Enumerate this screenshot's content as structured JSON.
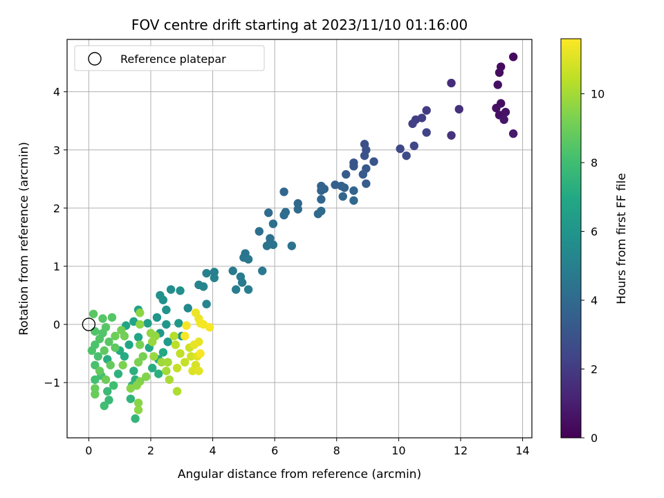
{
  "chart_data": {
    "type": "scatter",
    "title": "FOV centre drift starting at 2023/11/10 01:16:00",
    "xlabel": "Angular distance from reference (arcmin)",
    "ylabel": "Rotation from reference (arcmin)",
    "xlim": [
      -0.7,
      14.3
    ],
    "ylim": [
      -1.95,
      4.9
    ],
    "xticks": [
      0,
      2,
      4,
      6,
      8,
      10,
      12,
      14
    ],
    "yticks": [
      -1,
      0,
      1,
      2,
      3,
      4
    ],
    "xtick_labels": [
      "0",
      "2",
      "4",
      "6",
      "8",
      "10",
      "12",
      "14"
    ],
    "ytick_labels": [
      "−1",
      "0",
      "1",
      "2",
      "3",
      "4"
    ],
    "grid": true,
    "legend": {
      "placement": "top-left",
      "entries": [
        {
          "label": "Reference platepar",
          "marker": "open-circle"
        }
      ]
    },
    "reference_point": {
      "x": 0,
      "y": 0
    },
    "colorbar": {
      "label": "Hours from first FF file",
      "range": [
        0,
        11.6
      ],
      "ticks": [
        0,
        2,
        4,
        6,
        8,
        10
      ],
      "tick_labels": [
        "0",
        "2",
        "4",
        "6",
        "8",
        "10"
      ],
      "colormap": "viridis"
    },
    "points": [
      {
        "x": 13.7,
        "y": 4.6,
        "c": 0.3
      },
      {
        "x": 13.3,
        "y": 4.43,
        "c": 0.3
      },
      {
        "x": 13.25,
        "y": 4.33,
        "c": 0.4
      },
      {
        "x": 13.2,
        "y": 4.12,
        "c": 0.5
      },
      {
        "x": 13.3,
        "y": 3.8,
        "c": 0.4
      },
      {
        "x": 13.15,
        "y": 3.72,
        "c": 0.5
      },
      {
        "x": 13.45,
        "y": 3.65,
        "c": 0.6
      },
      {
        "x": 13.25,
        "y": 3.6,
        "c": 0.5
      },
      {
        "x": 13.4,
        "y": 3.52,
        "c": 0.7
      },
      {
        "x": 13.7,
        "y": 3.28,
        "c": 0.8
      },
      {
        "x": 11.7,
        "y": 4.15,
        "c": 1.5
      },
      {
        "x": 11.95,
        "y": 3.7,
        "c": 1.6
      },
      {
        "x": 11.7,
        "y": 3.25,
        "c": 1.7
      },
      {
        "x": 10.9,
        "y": 3.68,
        "c": 2.0
      },
      {
        "x": 10.75,
        "y": 3.55,
        "c": 2.1
      },
      {
        "x": 10.55,
        "y": 3.52,
        "c": 2.1
      },
      {
        "x": 10.45,
        "y": 3.45,
        "c": 2.2
      },
      {
        "x": 10.9,
        "y": 3.3,
        "c": 2.3
      },
      {
        "x": 10.5,
        "y": 3.07,
        "c": 2.4
      },
      {
        "x": 10.05,
        "y": 3.02,
        "c": 2.5
      },
      {
        "x": 10.25,
        "y": 2.9,
        "c": 2.6
      },
      {
        "x": 8.9,
        "y": 3.1,
        "c": 2.8
      },
      {
        "x": 8.95,
        "y": 3.0,
        "c": 2.9
      },
      {
        "x": 8.9,
        "y": 2.9,
        "c": 3.0
      },
      {
        "x": 9.2,
        "y": 2.8,
        "c": 3.0
      },
      {
        "x": 8.55,
        "y": 2.78,
        "c": 3.1
      },
      {
        "x": 8.55,
        "y": 2.72,
        "c": 3.1
      },
      {
        "x": 8.95,
        "y": 2.68,
        "c": 3.2
      },
      {
        "x": 8.3,
        "y": 2.58,
        "c": 3.3
      },
      {
        "x": 8.85,
        "y": 2.58,
        "c": 3.3
      },
      {
        "x": 8.95,
        "y": 2.42,
        "c": 3.4
      },
      {
        "x": 7.95,
        "y": 2.4,
        "c": 3.5
      },
      {
        "x": 8.15,
        "y": 2.38,
        "c": 3.5
      },
      {
        "x": 7.5,
        "y": 2.38,
        "c": 3.6
      },
      {
        "x": 8.25,
        "y": 2.35,
        "c": 3.6
      },
      {
        "x": 7.6,
        "y": 2.33,
        "c": 3.6
      },
      {
        "x": 7.5,
        "y": 2.3,
        "c": 3.7
      },
      {
        "x": 8.55,
        "y": 2.3,
        "c": 3.7
      },
      {
        "x": 8.2,
        "y": 2.2,
        "c": 3.8
      },
      {
        "x": 7.5,
        "y": 2.15,
        "c": 3.8
      },
      {
        "x": 8.55,
        "y": 2.13,
        "c": 3.9
      },
      {
        "x": 6.3,
        "y": 2.28,
        "c": 3.8
      },
      {
        "x": 6.75,
        "y": 2.08,
        "c": 3.9
      },
      {
        "x": 6.75,
        "y": 1.98,
        "c": 4.0
      },
      {
        "x": 7.5,
        "y": 1.95,
        "c": 4.0
      },
      {
        "x": 7.4,
        "y": 1.9,
        "c": 4.0
      },
      {
        "x": 6.35,
        "y": 1.93,
        "c": 4.1
      },
      {
        "x": 5.8,
        "y": 1.92,
        "c": 4.1
      },
      {
        "x": 6.3,
        "y": 1.88,
        "c": 4.1
      },
      {
        "x": 5.95,
        "y": 1.73,
        "c": 4.2
      },
      {
        "x": 5.5,
        "y": 1.6,
        "c": 4.2
      },
      {
        "x": 5.85,
        "y": 1.48,
        "c": 4.3
      },
      {
        "x": 5.85,
        "y": 1.4,
        "c": 4.3
      },
      {
        "x": 5.75,
        "y": 1.35,
        "c": 4.4
      },
      {
        "x": 5.95,
        "y": 1.37,
        "c": 4.4
      },
      {
        "x": 6.55,
        "y": 1.35,
        "c": 4.4
      },
      {
        "x": 5.05,
        "y": 1.22,
        "c": 4.5
      },
      {
        "x": 5.0,
        "y": 1.15,
        "c": 4.5
      },
      {
        "x": 5.15,
        "y": 1.12,
        "c": 4.6
      },
      {
        "x": 5.6,
        "y": 0.92,
        "c": 4.7
      },
      {
        "x": 4.65,
        "y": 0.92,
        "c": 4.7
      },
      {
        "x": 4.9,
        "y": 0.82,
        "c": 4.8
      },
      {
        "x": 4.95,
        "y": 0.72,
        "c": 4.8
      },
      {
        "x": 4.75,
        "y": 0.6,
        "c": 4.9
      },
      {
        "x": 5.15,
        "y": 0.6,
        "c": 4.9
      },
      {
        "x": 4.05,
        "y": 0.9,
        "c": 5.0
      },
      {
        "x": 3.8,
        "y": 0.88,
        "c": 5.0
      },
      {
        "x": 4.05,
        "y": 0.8,
        "c": 5.1
      },
      {
        "x": 3.55,
        "y": 0.68,
        "c": 5.2
      },
      {
        "x": 3.7,
        "y": 0.65,
        "c": 5.2
      },
      {
        "x": 3.8,
        "y": 0.35,
        "c": 5.3
      },
      {
        "x": 3.2,
        "y": 0.28,
        "c": 5.4
      },
      {
        "x": 2.65,
        "y": 0.6,
        "c": 5.6
      },
      {
        "x": 2.95,
        "y": 0.58,
        "c": 5.7
      },
      {
        "x": 2.3,
        "y": 0.5,
        "c": 5.8
      },
      {
        "x": 2.4,
        "y": 0.42,
        "c": 5.8
      },
      {
        "x": 2.5,
        "y": 0.25,
        "c": 5.9
      },
      {
        "x": 2.2,
        "y": 0.12,
        "c": 6.0
      },
      {
        "x": 2.5,
        "y": 0.0,
        "c": 6.1
      },
      {
        "x": 2.3,
        "y": -0.15,
        "c": 6.2
      },
      {
        "x": 2.9,
        "y": 0.02,
        "c": 6.2
      },
      {
        "x": 2.55,
        "y": -0.3,
        "c": 6.3
      },
      {
        "x": 3.0,
        "y": -0.2,
        "c": 6.3
      },
      {
        "x": 1.9,
        "y": 0.02,
        "c": 6.5
      },
      {
        "x": 1.6,
        "y": 0.25,
        "c": 6.6
      },
      {
        "x": 1.45,
        "y": 0.05,
        "c": 6.7
      },
      {
        "x": 1.2,
        "y": -0.02,
        "c": 6.8
      },
      {
        "x": 1.6,
        "y": -0.22,
        "c": 6.8
      },
      {
        "x": 1.3,
        "y": -0.35,
        "c": 6.9
      },
      {
        "x": 1.95,
        "y": -0.4,
        "c": 6.9
      },
      {
        "x": 2.4,
        "y": -0.48,
        "c": 7.0
      },
      {
        "x": 2.25,
        "y": -0.6,
        "c": 7.0
      },
      {
        "x": 1.0,
        "y": -0.45,
        "c": 7.1
      },
      {
        "x": 1.15,
        "y": -0.55,
        "c": 7.1
      },
      {
        "x": 0.6,
        "y": -0.6,
        "c": 7.2
      },
      {
        "x": 2.05,
        "y": -0.75,
        "c": 7.2
      },
      {
        "x": 1.45,
        "y": -0.8,
        "c": 7.3
      },
      {
        "x": 2.25,
        "y": -0.85,
        "c": 7.3
      },
      {
        "x": 1.5,
        "y": -0.95,
        "c": 7.4
      },
      {
        "x": 0.95,
        "y": -0.85,
        "c": 7.4
      },
      {
        "x": 1.4,
        "y": -1.05,
        "c": 7.5
      },
      {
        "x": 1.35,
        "y": -1.28,
        "c": 7.5
      },
      {
        "x": 1.5,
        "y": -1.62,
        "c": 7.6
      },
      {
        "x": 0.65,
        "y": -1.3,
        "c": 7.8
      },
      {
        "x": 0.6,
        "y": -1.15,
        "c": 7.8
      },
      {
        "x": 0.5,
        "y": -1.4,
        "c": 8.0
      },
      {
        "x": 0.8,
        "y": -1.05,
        "c": 8.0
      },
      {
        "x": 0.2,
        "y": -0.95,
        "c": 8.1
      },
      {
        "x": 0.4,
        "y": -0.88,
        "c": 8.1
      },
      {
        "x": 0.2,
        "y": -0.7,
        "c": 8.2
      },
      {
        "x": 0.3,
        "y": -0.55,
        "c": 8.2
      },
      {
        "x": 0.1,
        "y": -0.45,
        "c": 8.3
      },
      {
        "x": 0.2,
        "y": -0.35,
        "c": 8.3
      },
      {
        "x": 0.35,
        "y": -0.25,
        "c": 8.4
      },
      {
        "x": 0.45,
        "y": -0.15,
        "c": 8.4
      },
      {
        "x": 0.2,
        "y": -0.12,
        "c": 8.4
      },
      {
        "x": 0.55,
        "y": -0.05,
        "c": 8.5
      },
      {
        "x": 0.45,
        "y": 0.1,
        "c": 8.5
      },
      {
        "x": 0.75,
        "y": 0.12,
        "c": 8.5
      },
      {
        "x": 0.15,
        "y": 0.18,
        "c": 8.6
      },
      {
        "x": 0.65,
        "y": -0.3,
        "c": 8.6
      },
      {
        "x": 0.85,
        "y": -0.4,
        "c": 8.7
      },
      {
        "x": 0.5,
        "y": -0.45,
        "c": 8.7
      },
      {
        "x": 0.7,
        "y": -0.7,
        "c": 8.8
      },
      {
        "x": 0.35,
        "y": -0.8,
        "c": 8.8
      },
      {
        "x": 0.2,
        "y": -1.1,
        "c": 8.9
      },
      {
        "x": 0.2,
        "y": -1.2,
        "c": 8.9
      },
      {
        "x": 0.55,
        "y": -0.95,
        "c": 9.0
      },
      {
        "x": 0.85,
        "y": -0.2,
        "c": 9.0
      },
      {
        "x": 1.05,
        "y": -0.1,
        "c": 9.1
      },
      {
        "x": 1.15,
        "y": -0.2,
        "c": 9.1
      },
      {
        "x": 1.65,
        "y": -0.35,
        "c": 9.2
      },
      {
        "x": 1.75,
        "y": -0.55,
        "c": 9.2
      },
      {
        "x": 1.6,
        "y": -0.65,
        "c": 9.3
      },
      {
        "x": 1.1,
        "y": -0.7,
        "c": 9.3
      },
      {
        "x": 1.85,
        "y": -0.9,
        "c": 9.4
      },
      {
        "x": 1.65,
        "y": -0.98,
        "c": 9.4
      },
      {
        "x": 1.55,
        "y": -1.05,
        "c": 9.5
      },
      {
        "x": 1.35,
        "y": -1.1,
        "c": 9.5
      },
      {
        "x": 1.6,
        "y": -1.35,
        "c": 9.5
      },
      {
        "x": 1.6,
        "y": -1.47,
        "c": 9.6
      },
      {
        "x": 1.65,
        "y": 0.0,
        "c": 9.6
      },
      {
        "x": 1.65,
        "y": 0.2,
        "c": 9.6
      },
      {
        "x": 2.0,
        "y": -0.15,
        "c": 9.7
      },
      {
        "x": 2.15,
        "y": -0.2,
        "c": 9.7
      },
      {
        "x": 2.05,
        "y": -0.3,
        "c": 9.8
      },
      {
        "x": 2.1,
        "y": -0.55,
        "c": 9.8
      },
      {
        "x": 2.35,
        "y": -0.65,
        "c": 9.9
      },
      {
        "x": 2.55,
        "y": -0.65,
        "c": 10.0
      },
      {
        "x": 2.5,
        "y": -0.8,
        "c": 10.0
      },
      {
        "x": 2.6,
        "y": -0.95,
        "c": 10.1
      },
      {
        "x": 2.85,
        "y": -1.15,
        "c": 10.2
      },
      {
        "x": 2.75,
        "y": -0.2,
        "c": 10.3
      },
      {
        "x": 2.8,
        "y": -0.35,
        "c": 10.4
      },
      {
        "x": 2.95,
        "y": -0.5,
        "c": 10.5
      },
      {
        "x": 3.1,
        "y": -0.65,
        "c": 10.6
      },
      {
        "x": 2.85,
        "y": -0.75,
        "c": 10.6
      },
      {
        "x": 3.25,
        "y": -0.4,
        "c": 10.7
      },
      {
        "x": 3.3,
        "y": -0.55,
        "c": 10.8
      },
      {
        "x": 3.45,
        "y": -0.7,
        "c": 10.9
      },
      {
        "x": 3.35,
        "y": -0.8,
        "c": 11.0
      },
      {
        "x": 3.55,
        "y": -0.8,
        "c": 11.1
      },
      {
        "x": 3.5,
        "y": -0.55,
        "c": 11.1
      },
      {
        "x": 3.4,
        "y": -0.35,
        "c": 11.2
      },
      {
        "x": 3.55,
        "y": -0.3,
        "c": 11.2
      },
      {
        "x": 3.45,
        "y": 0.2,
        "c": 11.3
      },
      {
        "x": 3.55,
        "y": 0.1,
        "c": 11.3
      },
      {
        "x": 3.6,
        "y": 0.02,
        "c": 11.4
      },
      {
        "x": 3.7,
        "y": 0.0,
        "c": 11.4
      },
      {
        "x": 3.9,
        "y": -0.05,
        "c": 11.5
      },
      {
        "x": 3.15,
        "y": -0.02,
        "c": 11.5
      },
      {
        "x": 3.1,
        "y": -0.2,
        "c": 11.5
      },
      {
        "x": 3.6,
        "y": -0.5,
        "c": 11.5
      }
    ]
  }
}
